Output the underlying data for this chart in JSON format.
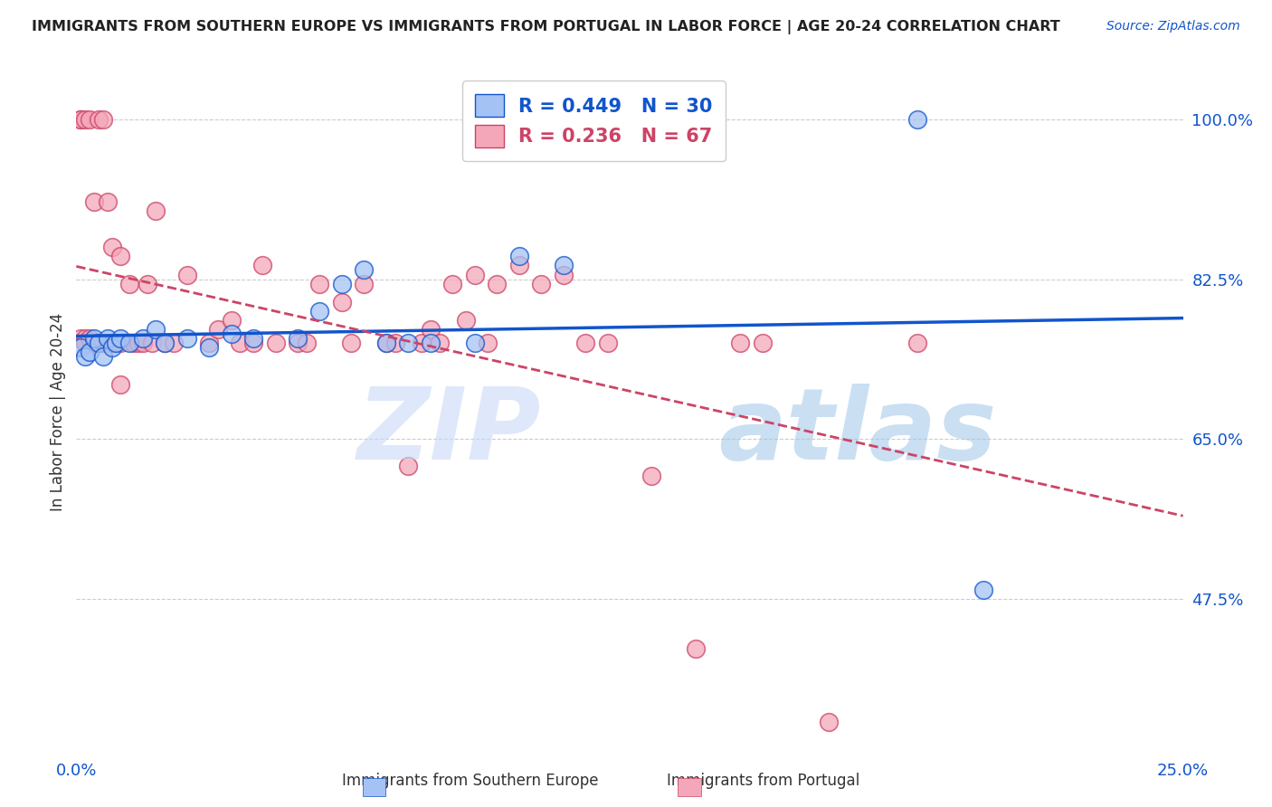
{
  "title": "IMMIGRANTS FROM SOUTHERN EUROPE VS IMMIGRANTS FROM PORTUGAL IN LABOR FORCE | AGE 20-24 CORRELATION CHART",
  "source": "Source: ZipAtlas.com",
  "ylabel": "In Labor Force | Age 20-24",
  "xlim": [
    0.0,
    0.25
  ],
  "ylim": [
    0.3,
    1.06
  ],
  "x_ticks": [
    0.0,
    0.05,
    0.1,
    0.15,
    0.2,
    0.25
  ],
  "x_tick_labels": [
    "0.0%",
    "",
    "",
    "",
    "",
    "25.0%"
  ],
  "y_tick_labels_right": [
    "100.0%",
    "82.5%",
    "65.0%",
    "47.5%"
  ],
  "y_ticks_right": [
    1.0,
    0.825,
    0.65,
    0.475
  ],
  "R_blue": 0.449,
  "N_blue": 30,
  "R_pink": 0.236,
  "N_pink": 67,
  "blue_color": "#a4c2f4",
  "pink_color": "#f4a7b9",
  "blue_line_color": "#1155cc",
  "pink_line_color": "#cc4466",
  "blue_scatter_x": [
    0.001,
    0.002,
    0.003,
    0.004,
    0.005,
    0.006,
    0.007,
    0.008,
    0.009,
    0.01,
    0.012,
    0.015,
    0.018,
    0.02,
    0.025,
    0.03,
    0.035,
    0.04,
    0.05,
    0.055,
    0.06,
    0.065,
    0.07,
    0.075,
    0.08,
    0.09,
    0.1,
    0.11,
    0.19,
    0.205
  ],
  "blue_scatter_y": [
    0.75,
    0.74,
    0.745,
    0.76,
    0.755,
    0.74,
    0.76,
    0.75,
    0.755,
    0.76,
    0.755,
    0.76,
    0.77,
    0.755,
    0.76,
    0.75,
    0.765,
    0.76,
    0.76,
    0.79,
    0.82,
    0.835,
    0.755,
    0.755,
    0.755,
    0.755,
    0.85,
    0.84,
    1.0,
    0.485
  ],
  "pink_scatter_x": [
    0.001,
    0.001,
    0.001,
    0.002,
    0.002,
    0.002,
    0.003,
    0.003,
    0.004,
    0.004,
    0.005,
    0.005,
    0.006,
    0.006,
    0.007,
    0.007,
    0.008,
    0.008,
    0.009,
    0.01,
    0.01,
    0.01,
    0.012,
    0.013,
    0.014,
    0.015,
    0.016,
    0.017,
    0.018,
    0.02,
    0.022,
    0.025,
    0.03,
    0.032,
    0.035,
    0.037,
    0.04,
    0.042,
    0.045,
    0.05,
    0.052,
    0.055,
    0.06,
    0.062,
    0.065,
    0.07,
    0.072,
    0.075,
    0.078,
    0.08,
    0.082,
    0.085,
    0.088,
    0.09,
    0.093,
    0.095,
    0.1,
    0.105,
    0.11,
    0.115,
    0.12,
    0.13,
    0.14,
    0.15,
    0.155,
    0.17,
    0.19
  ],
  "pink_scatter_y": [
    0.76,
    1.0,
    1.0,
    0.76,
    0.755,
    1.0,
    0.76,
    1.0,
    0.755,
    0.91,
    0.755,
    1.0,
    0.755,
    1.0,
    0.755,
    0.91,
    0.755,
    0.86,
    0.755,
    0.71,
    0.85,
    0.755,
    0.82,
    0.755,
    0.755,
    0.755,
    0.82,
    0.755,
    0.9,
    0.755,
    0.755,
    0.83,
    0.755,
    0.77,
    0.78,
    0.755,
    0.755,
    0.84,
    0.755,
    0.755,
    0.755,
    0.82,
    0.8,
    0.755,
    0.82,
    0.755,
    0.755,
    0.62,
    0.755,
    0.77,
    0.755,
    0.82,
    0.78,
    0.83,
    0.755,
    0.82,
    0.84,
    0.82,
    0.83,
    0.755,
    0.755,
    0.61,
    0.42,
    0.755,
    0.755,
    0.34,
    0.755
  ]
}
